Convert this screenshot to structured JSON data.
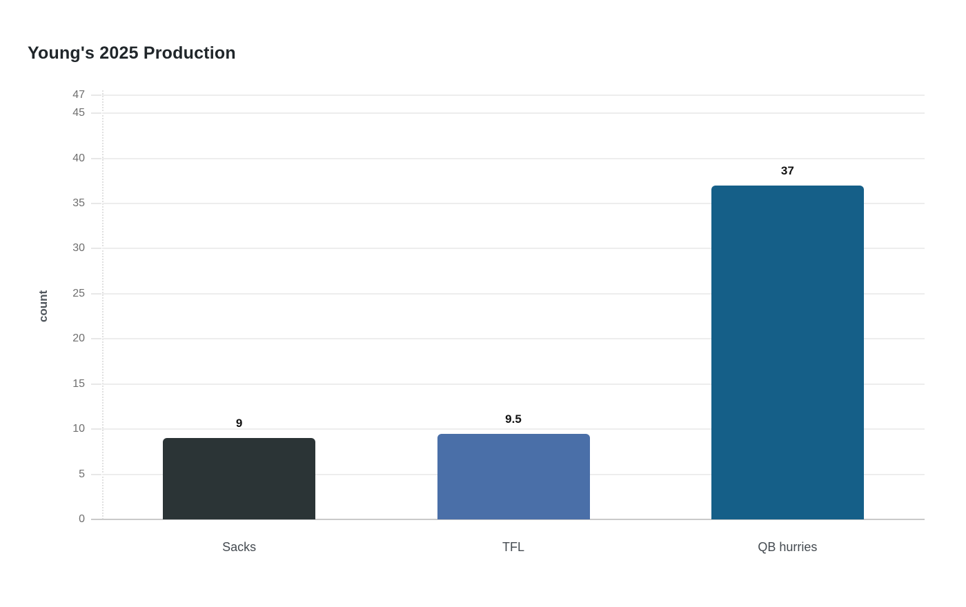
{
  "page": {
    "background_color": "#ffffff"
  },
  "chart_data": {
    "type": "bar",
    "title": "Young's 2025 Production",
    "xlabel": "",
    "ylabel": "count",
    "categories": [
      "Sacks",
      "TFL",
      "QB hurries"
    ],
    "values": [
      9,
      9.5,
      37
    ],
    "value_labels": [
      "9",
      "9.5",
      "37"
    ],
    "bar_colors": [
      "#2b3436",
      "#4a6fa8",
      "#155f88"
    ],
    "yticks": [
      0,
      5,
      10,
      15,
      20,
      25,
      30,
      35,
      40,
      45,
      47
    ],
    "ylim": [
      0,
      47
    ],
    "grid": "horizontal gridlines on, light gray",
    "legend_position": "none",
    "style": {
      "title_color": "#20262a",
      "tick_label_color": "#6e6e6e",
      "category_label_color": "#444a50",
      "value_label_color": "#111111",
      "ylabel_color": "#50565c",
      "gridline_color": "#ededed",
      "axis_line_color": "#c9c9c9"
    }
  }
}
